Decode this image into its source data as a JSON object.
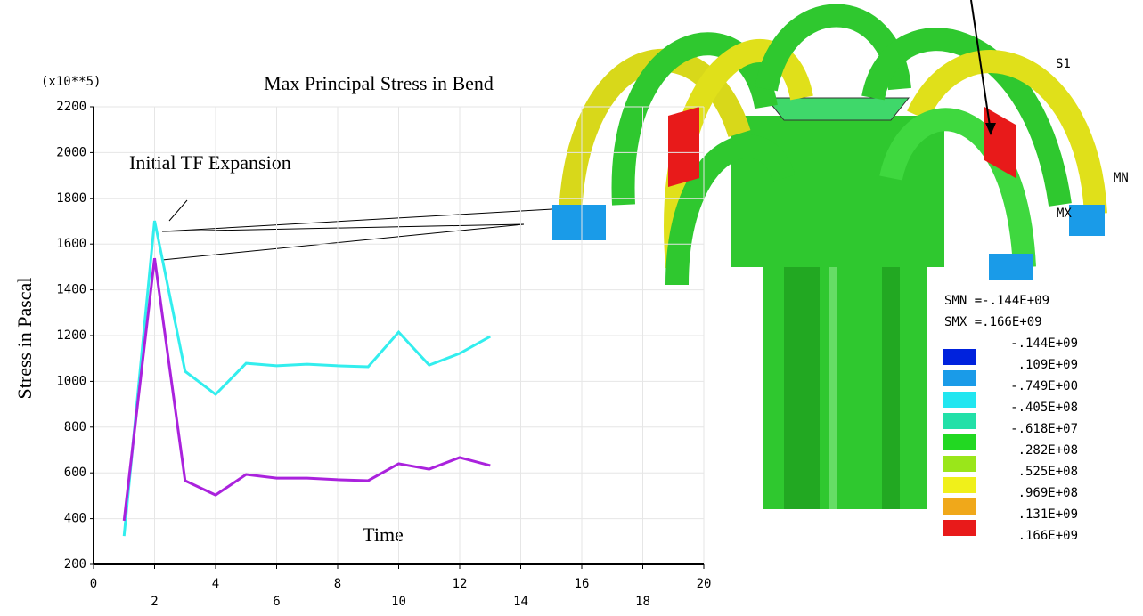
{
  "chart_data": {
    "type": "line",
    "title": "Max Principal Stress in Bend",
    "scale_note": "(x10**5)",
    "x_label": "Time",
    "y_label": "Stress in Pascal",
    "annotation": "Initial TF Expansion",
    "x": [
      1,
      2,
      3,
      4,
      5,
      6,
      7,
      8,
      9,
      10,
      11,
      12,
      13
    ],
    "series": [
      {
        "color": "#33eeee",
        "values": [
          324,
          1702,
          1044,
          943,
          1079,
          1068,
          1075,
          1068,
          1064,
          1215,
          1071,
          1122,
          1196
        ]
      },
      {
        "color": "#aa22dd",
        "values": [
          391,
          1538,
          566,
          503,
          593,
          577,
          577,
          570,
          566,
          640,
          616,
          667,
          632
        ]
      }
    ],
    "xlim": [
      0,
      20
    ],
    "xticks": [
      0,
      2,
      4,
      6,
      8,
      10,
      12,
      14,
      16,
      18,
      20
    ],
    "ylim": [
      200,
      2200
    ],
    "yticks": [
      200,
      400,
      600,
      800,
      1000,
      1200,
      1400,
      1600,
      1800,
      2000,
      2200
    ],
    "grid": true
  },
  "model_labels": {
    "result": "S1",
    "min": "MN",
    "max": "MX"
  },
  "contour_legend": {
    "smn": "SMN =-.144E+09",
    "smx": "SMX =.166E+09",
    "levels": [
      "-.144E+09",
      ".109E+09",
      "-.749E+00",
      "-.405E+08",
      "-.618E+07",
      ".282E+08",
      ".525E+08",
      ".969E+08",
      ".131E+09",
      ".166E+09"
    ],
    "colors": [
      "#0022dd",
      "#1a9be8",
      "#22e6f0",
      "#22e0a8",
      "#22d822",
      "#9ae61a",
      "#f0f01a",
      "#f0a81a",
      "#e81a1a"
    ]
  }
}
